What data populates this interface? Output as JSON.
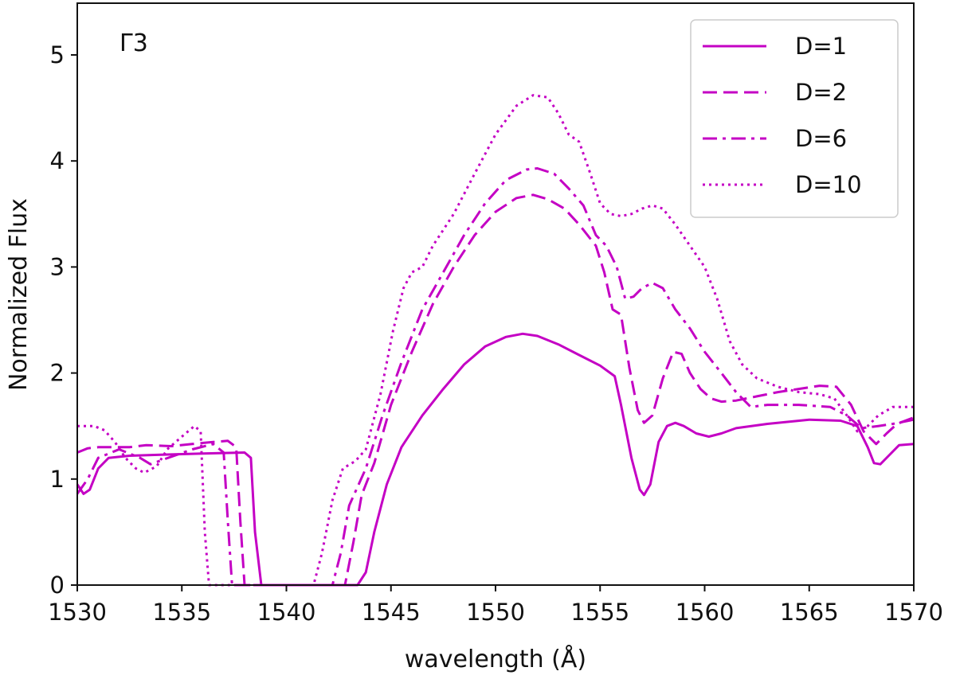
{
  "chart_data": {
    "type": "line",
    "panel_label": "Γ3",
    "xlabel": "wavelength (Å)",
    "ylabel": "Normalized Flux",
    "xlim": [
      1530,
      1570
    ],
    "ylim": [
      0,
      5.5
    ],
    "xticks": [
      1530,
      1535,
      1540,
      1545,
      1550,
      1555,
      1560,
      1565,
      1570
    ],
    "yticks": [
      0,
      1,
      2,
      3,
      4,
      5
    ],
    "grid": false,
    "legend_position": "top-right",
    "line_color": "#c400c4",
    "series": [
      {
        "name": "D=1",
        "dash": "solid",
        "points": [
          [
            1530.0,
            0.95
          ],
          [
            1530.3,
            0.86
          ],
          [
            1530.6,
            0.9
          ],
          [
            1531.0,
            1.1
          ],
          [
            1531.5,
            1.2
          ],
          [
            1532.5,
            1.22
          ],
          [
            1534.0,
            1.23
          ],
          [
            1536.0,
            1.24
          ],
          [
            1538.0,
            1.25
          ],
          [
            1538.3,
            1.2
          ],
          [
            1538.5,
            0.5
          ],
          [
            1538.8,
            0.0
          ],
          [
            1543.4,
            0.0
          ],
          [
            1543.8,
            0.12
          ],
          [
            1544.2,
            0.5
          ],
          [
            1544.8,
            0.95
          ],
          [
            1545.5,
            1.3
          ],
          [
            1546.5,
            1.6
          ],
          [
            1547.5,
            1.85
          ],
          [
            1548.5,
            2.08
          ],
          [
            1549.5,
            2.25
          ],
          [
            1550.5,
            2.34
          ],
          [
            1551.3,
            2.37
          ],
          [
            1552.0,
            2.35
          ],
          [
            1553.0,
            2.27
          ],
          [
            1554.0,
            2.17
          ],
          [
            1555.0,
            2.07
          ],
          [
            1555.7,
            1.97
          ],
          [
            1556.0,
            1.7
          ],
          [
            1556.5,
            1.2
          ],
          [
            1556.9,
            0.9
          ],
          [
            1557.1,
            0.85
          ],
          [
            1557.4,
            0.95
          ],
          [
            1557.8,
            1.35
          ],
          [
            1558.2,
            1.5
          ],
          [
            1558.6,
            1.53
          ],
          [
            1559.0,
            1.5
          ],
          [
            1559.6,
            1.43
          ],
          [
            1560.2,
            1.4
          ],
          [
            1560.8,
            1.43
          ],
          [
            1561.5,
            1.48
          ],
          [
            1563.0,
            1.52
          ],
          [
            1565.0,
            1.56
          ],
          [
            1566.5,
            1.55
          ],
          [
            1567.3,
            1.5
          ],
          [
            1567.8,
            1.3
          ],
          [
            1568.1,
            1.15
          ],
          [
            1568.4,
            1.14
          ],
          [
            1568.8,
            1.22
          ],
          [
            1569.3,
            1.32
          ],
          [
            1570.0,
            1.33
          ]
        ]
      },
      {
        "name": "D=2",
        "dash": "dashed",
        "points": [
          [
            1530.0,
            1.25
          ],
          [
            1530.5,
            1.29
          ],
          [
            1531.0,
            1.3
          ],
          [
            1532.5,
            1.3
          ],
          [
            1533.3,
            1.32
          ],
          [
            1534.5,
            1.31
          ],
          [
            1535.5,
            1.33
          ],
          [
            1536.5,
            1.35
          ],
          [
            1537.2,
            1.36
          ],
          [
            1537.6,
            1.3
          ],
          [
            1537.8,
            0.6
          ],
          [
            1538.0,
            0.0
          ],
          [
            1542.8,
            0.0
          ],
          [
            1543.2,
            0.4
          ],
          [
            1543.6,
            0.85
          ],
          [
            1544.2,
            1.15
          ],
          [
            1545.0,
            1.7
          ],
          [
            1546.0,
            2.2
          ],
          [
            1547.0,
            2.65
          ],
          [
            1548.0,
            3.0
          ],
          [
            1549.0,
            3.3
          ],
          [
            1550.0,
            3.52
          ],
          [
            1551.0,
            3.65
          ],
          [
            1551.8,
            3.68
          ],
          [
            1552.5,
            3.64
          ],
          [
            1553.3,
            3.55
          ],
          [
            1554.0,
            3.4
          ],
          [
            1554.8,
            3.2
          ],
          [
            1555.2,
            2.95
          ],
          [
            1555.6,
            2.6
          ],
          [
            1556.0,
            2.55
          ],
          [
            1556.4,
            2.05
          ],
          [
            1556.8,
            1.65
          ],
          [
            1557.1,
            1.53
          ],
          [
            1557.5,
            1.6
          ],
          [
            1558.0,
            1.95
          ],
          [
            1558.5,
            2.2
          ],
          [
            1558.9,
            2.18
          ],
          [
            1559.3,
            2.0
          ],
          [
            1559.8,
            1.85
          ],
          [
            1560.3,
            1.76
          ],
          [
            1560.8,
            1.73
          ],
          [
            1561.5,
            1.74
          ],
          [
            1562.5,
            1.78
          ],
          [
            1563.5,
            1.82
          ],
          [
            1564.5,
            1.85
          ],
          [
            1565.5,
            1.88
          ],
          [
            1566.3,
            1.87
          ],
          [
            1567.0,
            1.7
          ],
          [
            1567.6,
            1.45
          ],
          [
            1568.2,
            1.33
          ],
          [
            1568.7,
            1.43
          ],
          [
            1569.2,
            1.52
          ],
          [
            1570.0,
            1.58
          ]
        ]
      },
      {
        "name": "D=6",
        "dash": "dashdot",
        "points": [
          [
            1530.0,
            0.86
          ],
          [
            1530.5,
            1.0
          ],
          [
            1531.0,
            1.2
          ],
          [
            1532.0,
            1.28
          ],
          [
            1533.0,
            1.2
          ],
          [
            1533.5,
            1.14
          ],
          [
            1534.2,
            1.19
          ],
          [
            1535.5,
            1.28
          ],
          [
            1536.5,
            1.33
          ],
          [
            1537.0,
            1.25
          ],
          [
            1537.2,
            0.6
          ],
          [
            1537.4,
            0.0
          ],
          [
            1542.2,
            0.0
          ],
          [
            1542.6,
            0.3
          ],
          [
            1543.0,
            0.75
          ],
          [
            1543.8,
            1.1
          ],
          [
            1544.6,
            1.6
          ],
          [
            1545.5,
            2.1
          ],
          [
            1546.5,
            2.6
          ],
          [
            1547.5,
            2.95
          ],
          [
            1548.5,
            3.3
          ],
          [
            1549.5,
            3.6
          ],
          [
            1550.5,
            3.82
          ],
          [
            1551.5,
            3.92
          ],
          [
            1552.0,
            3.93
          ],
          [
            1552.8,
            3.88
          ],
          [
            1553.5,
            3.74
          ],
          [
            1554.2,
            3.58
          ],
          [
            1554.8,
            3.3
          ],
          [
            1555.3,
            3.2
          ],
          [
            1555.8,
            3.0
          ],
          [
            1556.2,
            2.7
          ],
          [
            1556.6,
            2.72
          ],
          [
            1557.0,
            2.8
          ],
          [
            1557.5,
            2.85
          ],
          [
            1558.0,
            2.8
          ],
          [
            1558.6,
            2.6
          ],
          [
            1559.3,
            2.42
          ],
          [
            1560.0,
            2.2
          ],
          [
            1560.8,
            2.0
          ],
          [
            1561.5,
            1.82
          ],
          [
            1562.2,
            1.68
          ],
          [
            1563.0,
            1.7
          ],
          [
            1564.5,
            1.7
          ],
          [
            1566.0,
            1.68
          ],
          [
            1566.8,
            1.6
          ],
          [
            1567.5,
            1.48
          ],
          [
            1568.3,
            1.5
          ],
          [
            1569.0,
            1.52
          ],
          [
            1570.0,
            1.56
          ]
        ]
      },
      {
        "name": "D=10",
        "dash": "dotted",
        "points": [
          [
            1530.0,
            1.5
          ],
          [
            1530.8,
            1.5
          ],
          [
            1531.3,
            1.46
          ],
          [
            1531.8,
            1.35
          ],
          [
            1532.3,
            1.2
          ],
          [
            1532.8,
            1.1
          ],
          [
            1533.2,
            1.06
          ],
          [
            1533.8,
            1.12
          ],
          [
            1534.3,
            1.28
          ],
          [
            1535.0,
            1.4
          ],
          [
            1535.6,
            1.5
          ],
          [
            1535.9,
            1.45
          ],
          [
            1536.1,
            0.5
          ],
          [
            1536.3,
            0.0
          ],
          [
            1541.3,
            0.0
          ],
          [
            1541.7,
            0.3
          ],
          [
            1542.2,
            0.8
          ],
          [
            1542.7,
            1.1
          ],
          [
            1543.3,
            1.17
          ],
          [
            1543.8,
            1.28
          ],
          [
            1544.5,
            1.8
          ],
          [
            1545.1,
            2.4
          ],
          [
            1545.6,
            2.8
          ],
          [
            1546.0,
            2.95
          ],
          [
            1546.5,
            3.0
          ],
          [
            1547.0,
            3.2
          ],
          [
            1548.0,
            3.5
          ],
          [
            1549.0,
            3.88
          ],
          [
            1550.0,
            4.25
          ],
          [
            1551.0,
            4.52
          ],
          [
            1551.8,
            4.62
          ],
          [
            1552.5,
            4.6
          ],
          [
            1553.0,
            4.45
          ],
          [
            1553.5,
            4.25
          ],
          [
            1554.0,
            4.18
          ],
          [
            1554.5,
            3.9
          ],
          [
            1555.0,
            3.6
          ],
          [
            1555.5,
            3.5
          ],
          [
            1556.0,
            3.48
          ],
          [
            1556.5,
            3.5
          ],
          [
            1557.0,
            3.55
          ],
          [
            1557.5,
            3.58
          ],
          [
            1558.0,
            3.55
          ],
          [
            1558.6,
            3.4
          ],
          [
            1559.3,
            3.2
          ],
          [
            1560.0,
            3.0
          ],
          [
            1560.6,
            2.7
          ],
          [
            1561.2,
            2.3
          ],
          [
            1561.8,
            2.08
          ],
          [
            1562.5,
            1.95
          ],
          [
            1563.5,
            1.87
          ],
          [
            1564.5,
            1.82
          ],
          [
            1565.5,
            1.8
          ],
          [
            1566.2,
            1.76
          ],
          [
            1566.8,
            1.6
          ],
          [
            1567.3,
            1.45
          ],
          [
            1567.8,
            1.5
          ],
          [
            1568.3,
            1.6
          ],
          [
            1569.0,
            1.68
          ],
          [
            1570.0,
            1.68
          ]
        ]
      }
    ]
  }
}
